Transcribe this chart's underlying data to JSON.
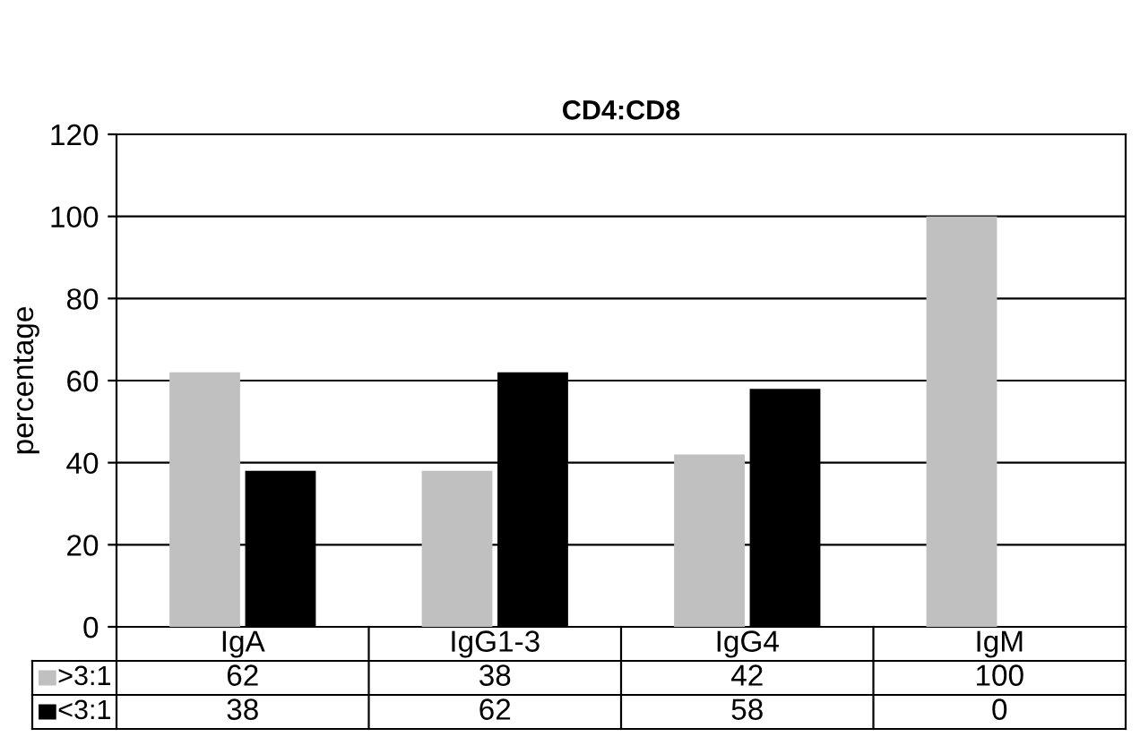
{
  "chart_data": {
    "type": "bar",
    "title": "CD4:CD8",
    "ylabel": "percentage",
    "categories": [
      "IgA",
      "IgG1-3",
      "IgG4",
      "IgM"
    ],
    "series": [
      {
        "name": ">3:1",
        "color": "#c0c0c0",
        "values": [
          62,
          38,
          42,
          100
        ]
      },
      {
        "name": "<3:1",
        "color": "#000000",
        "values": [
          38,
          62,
          58,
          0
        ]
      }
    ],
    "ylim": [
      0,
      120
    ],
    "yticks": [
      0,
      20,
      40,
      60,
      80,
      100,
      120
    ],
    "grid": "y",
    "data_labels": true,
    "legend": "bottom"
  }
}
